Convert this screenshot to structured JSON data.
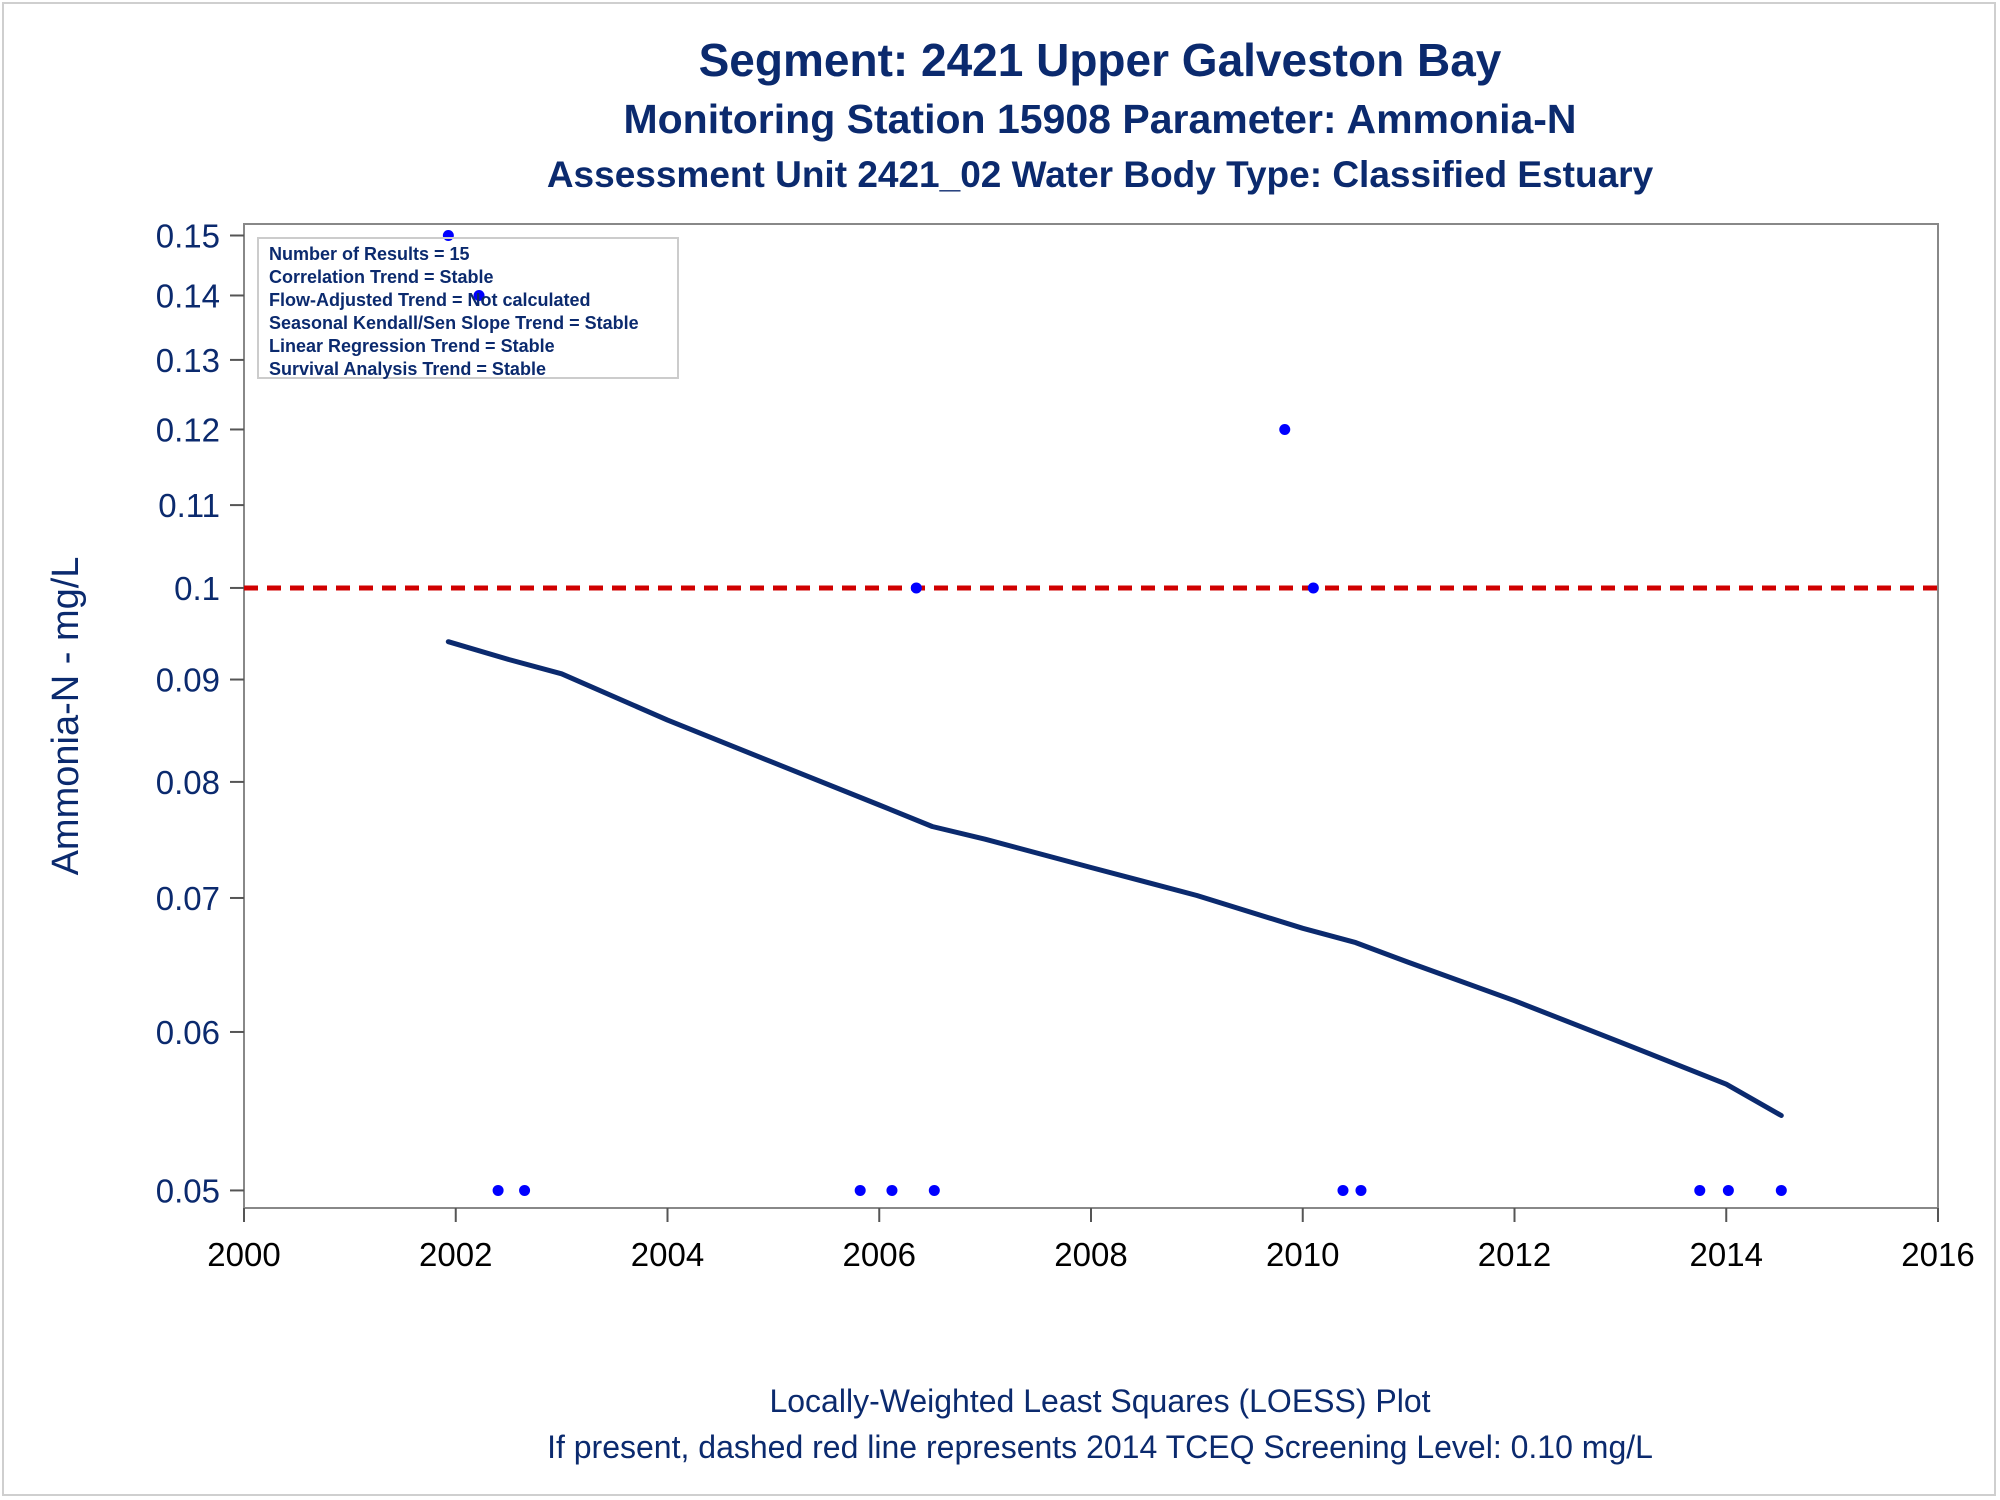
{
  "chart_data": {
    "type": "scatter",
    "title": "Segment: 2421  Upper Galveston Bay",
    "subtitle": "Monitoring Station 15908 Parameter: Ammonia-N",
    "subtitle2": "Assessment Unit 2421_02   Water Body Type: Classified Estuary",
    "ylabel": "Ammonia-N - mg/L",
    "xlabel": "",
    "xlim": [
      2000,
      2016
    ],
    "ylim": [
      0.049,
      0.152
    ],
    "yscale": "log",
    "x_ticks": [
      "2000",
      "2002",
      "2004",
      "2006",
      "2008",
      "2010",
      "2012",
      "2014",
      "2016"
    ],
    "y_ticks": [
      {
        "value": 0.05,
        "label": "0.05"
      },
      {
        "value": 0.06,
        "label": "0.06"
      },
      {
        "value": 0.07,
        "label": "0.07"
      },
      {
        "value": 0.08,
        "label": "0.08"
      },
      {
        "value": 0.09,
        "label": "0.09"
      },
      {
        "value": 0.1,
        "label": "0.1"
      },
      {
        "value": 0.11,
        "label": "0.11"
      },
      {
        "value": 0.12,
        "label": "0.12"
      },
      {
        "value": 0.13,
        "label": "0.13"
      },
      {
        "value": 0.14,
        "label": "0.14"
      },
      {
        "value": 0.15,
        "label": "0.15"
      }
    ],
    "grid": false,
    "points": [
      {
        "x": 2001.93,
        "y": 0.15
      },
      {
        "x": 2002.22,
        "y": 0.14
      },
      {
        "x": 2002.4,
        "y": 0.05
      },
      {
        "x": 2002.65,
        "y": 0.05
      },
      {
        "x": 2005.82,
        "y": 0.05
      },
      {
        "x": 2006.12,
        "y": 0.05
      },
      {
        "x": 2006.35,
        "y": 0.1
      },
      {
        "x": 2006.52,
        "y": 0.05
      },
      {
        "x": 2009.83,
        "y": 0.12
      },
      {
        "x": 2010.1,
        "y": 0.1
      },
      {
        "x": 2010.38,
        "y": 0.05
      },
      {
        "x": 2010.55,
        "y": 0.05
      },
      {
        "x": 2013.75,
        "y": 0.05
      },
      {
        "x": 2014.02,
        "y": 0.05
      },
      {
        "x": 2014.52,
        "y": 0.05
      }
    ],
    "point_color": "#0000ff",
    "loess": {
      "color": "#0b2a6e",
      "x": [
        2001.93,
        2002.5,
        2003.0,
        2004.0,
        2005.0,
        2006.0,
        2006.5,
        2007.0,
        2008.0,
        2009.0,
        2010.0,
        2010.5,
        2011.0,
        2012.0,
        2013.0,
        2014.0,
        2014.52
      ],
      "y": [
        0.094,
        0.0921,
        0.0906,
        0.0859,
        0.0818,
        0.0779,
        0.076,
        0.0749,
        0.0725,
        0.0702,
        0.0676,
        0.0665,
        0.065,
        0.0622,
        0.0593,
        0.0565,
        0.0545
      ]
    },
    "reference_line": {
      "y": 0.1,
      "color": "#d00000",
      "style": "dashed"
    },
    "legend": {
      "placement": "top-left",
      "lines": [
        "Number of Results = 15",
        "Correlation Trend = Stable",
        "Flow-Adjusted Trend = Not calculated",
        "Seasonal Kendall/Sen Slope Trend = Stable",
        "Linear Regression Trend = Stable",
        "Survival Analysis Trend = Stable"
      ]
    },
    "footnote1": "Locally-Weighted Least Squares (LOESS) Plot",
    "footnote2": "If present, dashed red line represents 2014 TCEQ Screening Level: 0.10 mg/L"
  }
}
